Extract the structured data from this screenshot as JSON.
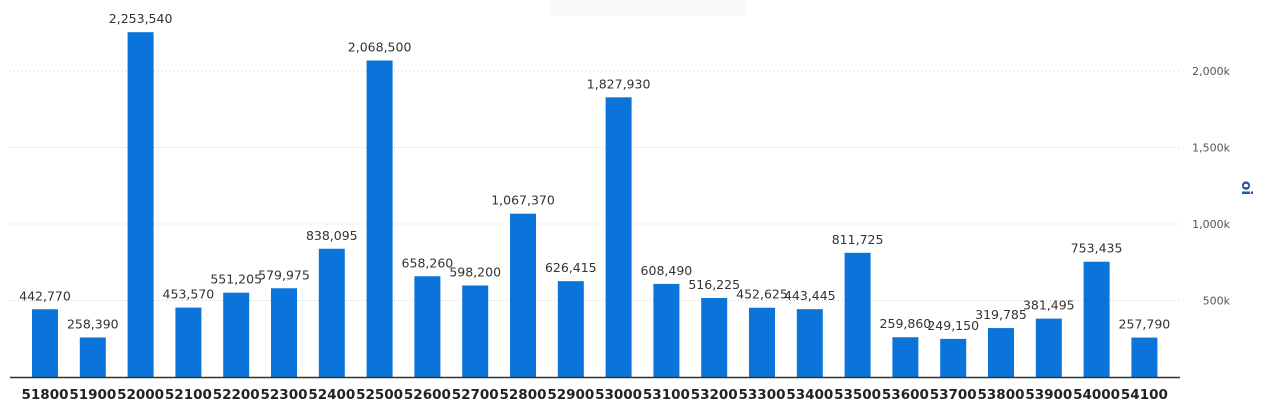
{
  "chart_data": {
    "type": "bar",
    "title": "",
    "xlabel": "",
    "ylabel": "oi",
    "ylim": [
      0,
      2500000
    ],
    "y_ticks": [
      500000,
      1000000,
      1500000,
      2000000,
      2500000
    ],
    "y_tick_labels": [
      "500k",
      "1,000k",
      "1,500k",
      "2,000k",
      ","
    ],
    "grid": true,
    "color": "#0a74da",
    "categories": [
      "51800",
      "51900",
      "52000",
      "52100",
      "52200",
      "52300",
      "52400",
      "52500",
      "52600",
      "52700",
      "52800",
      "52900",
      "53000",
      "53100",
      "53200",
      "53300",
      "53400",
      "53500",
      "53600",
      "53700",
      "53800",
      "53900",
      "54000",
      "54100"
    ],
    "values": [
      442770,
      258390,
      2253540,
      453570,
      551205,
      579975,
      838095,
      2068500,
      658260,
      598200,
      1067370,
      626415,
      1827930,
      608490,
      516225,
      452625,
      443445,
      811725,
      259860,
      249150,
      319785,
      381495,
      753435,
      257790
    ],
    "value_labels": [
      "442,770",
      "258,390",
      "2,253,540",
      "453,570",
      "551,205",
      "579,975",
      "838,095",
      "2,068,500",
      "658,260",
      "598,200",
      "1,067,370",
      "626,415",
      "1,827,930",
      "608,490",
      "516,225",
      "452,625",
      "443,445",
      "811,725",
      "259,860",
      "249,150",
      "319,785",
      "381,495",
      "753,435",
      "257,790"
    ]
  }
}
